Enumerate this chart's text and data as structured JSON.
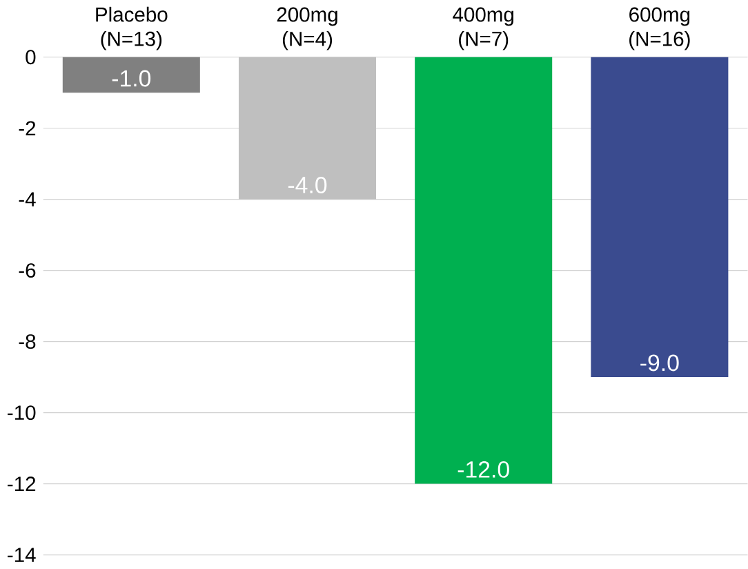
{
  "chart_data": {
    "type": "bar",
    "categories": [
      "Placebo (N=13)",
      "200mg (N=4)",
      "400mg (N=7)",
      "600mg (N=16)"
    ],
    "values": [
      -1,
      -4,
      -12,
      -9
    ],
    "colors": [
      "#808080",
      "#bfbfbf",
      "#00b050",
      "#3a4b8f"
    ],
    "value_labels": [
      "-1.0",
      "-4.0",
      "-12.0",
      "-9.0"
    ],
    "ylim": [
      -14,
      0
    ],
    "yticks": [
      0,
      -2,
      -4,
      -6,
      -8,
      -10,
      -12,
      -14
    ],
    "grid": "y"
  }
}
